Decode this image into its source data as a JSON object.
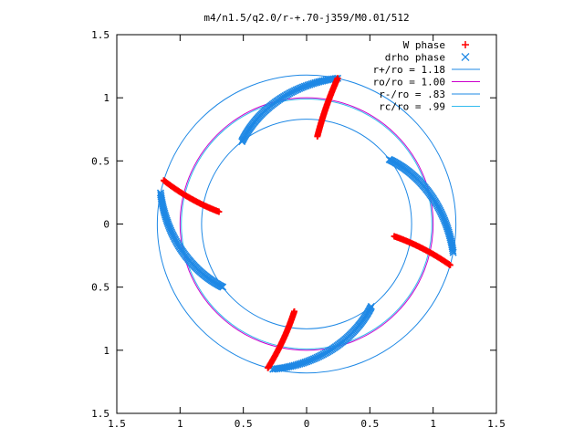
{
  "chart_data": {
    "type": "scatter",
    "title": "m4/n1.5/q2.0/r-+.70-j359/M0.01/512",
    "xlabel": "",
    "ylabel": "",
    "xlim": [
      -1.5,
      1.5
    ],
    "ylim": [
      -1.5,
      1.5
    ],
    "grid": false,
    "legend_position": "top-right",
    "x_tick_labels": [
      "1.5",
      "1",
      "0.5",
      "0",
      "0.5",
      "1",
      "1.5"
    ],
    "x_tick_values": [
      -1.5,
      -1,
      -0.5,
      0,
      0.5,
      1,
      1.5
    ],
    "y_tick_labels": [
      "1.5",
      "1",
      "0.5",
      "0",
      "0.5",
      "1",
      "1.5"
    ],
    "y_tick_values": [
      1.5,
      1,
      0.5,
      0,
      -0.5,
      -1,
      -1.5
    ],
    "series": [
      {
        "name": "W phase",
        "marker": "+",
        "color": "#ff0000",
        "segments": [
          {
            "r_start": 0.7,
            "r_end": 1.18,
            "angle_start_deg": 83,
            "angle_end_deg": 78
          },
          {
            "r_start": 0.7,
            "r_end": 1.18,
            "angle_start_deg": 172,
            "angle_end_deg": 163
          },
          {
            "r_start": 0.7,
            "r_end": 1.18,
            "angle_start_deg": 262,
            "angle_end_deg": 255
          },
          {
            "r_start": 0.7,
            "r_end": 1.18,
            "angle_start_deg": 352,
            "angle_end_deg": 344
          }
        ]
      },
      {
        "name": "drho phase",
        "marker": "x",
        "color": "#1e88e5",
        "arcs": [
          {
            "r_start": 0.83,
            "r_end": 1.18,
            "angle_start_deg": 128,
            "angle_end_deg": 78
          },
          {
            "r_start": 0.83,
            "r_end": 1.18,
            "angle_start_deg": 217,
            "angle_end_deg": 168
          },
          {
            "r_start": 0.83,
            "r_end": 1.18,
            "angle_start_deg": 308,
            "angle_end_deg": 257
          },
          {
            "r_start": 0.83,
            "r_end": 1.18,
            "angle_start_deg": 38,
            "angle_end_deg": -11
          }
        ]
      },
      {
        "name": "r+/ro = 1.18",
        "type": "circle",
        "radius": 1.18,
        "color": "#1e88e5"
      },
      {
        "name": "ro/ro = 1.00",
        "type": "circle",
        "radius": 1.0,
        "color": "#cc00cc"
      },
      {
        "name": "r-/ro = .83",
        "type": "circle",
        "radius": 0.83,
        "color": "#1e88e5"
      },
      {
        "name": "rc/ro = .99",
        "type": "circle",
        "radius": 0.99,
        "color": "#33bbee"
      }
    ]
  }
}
